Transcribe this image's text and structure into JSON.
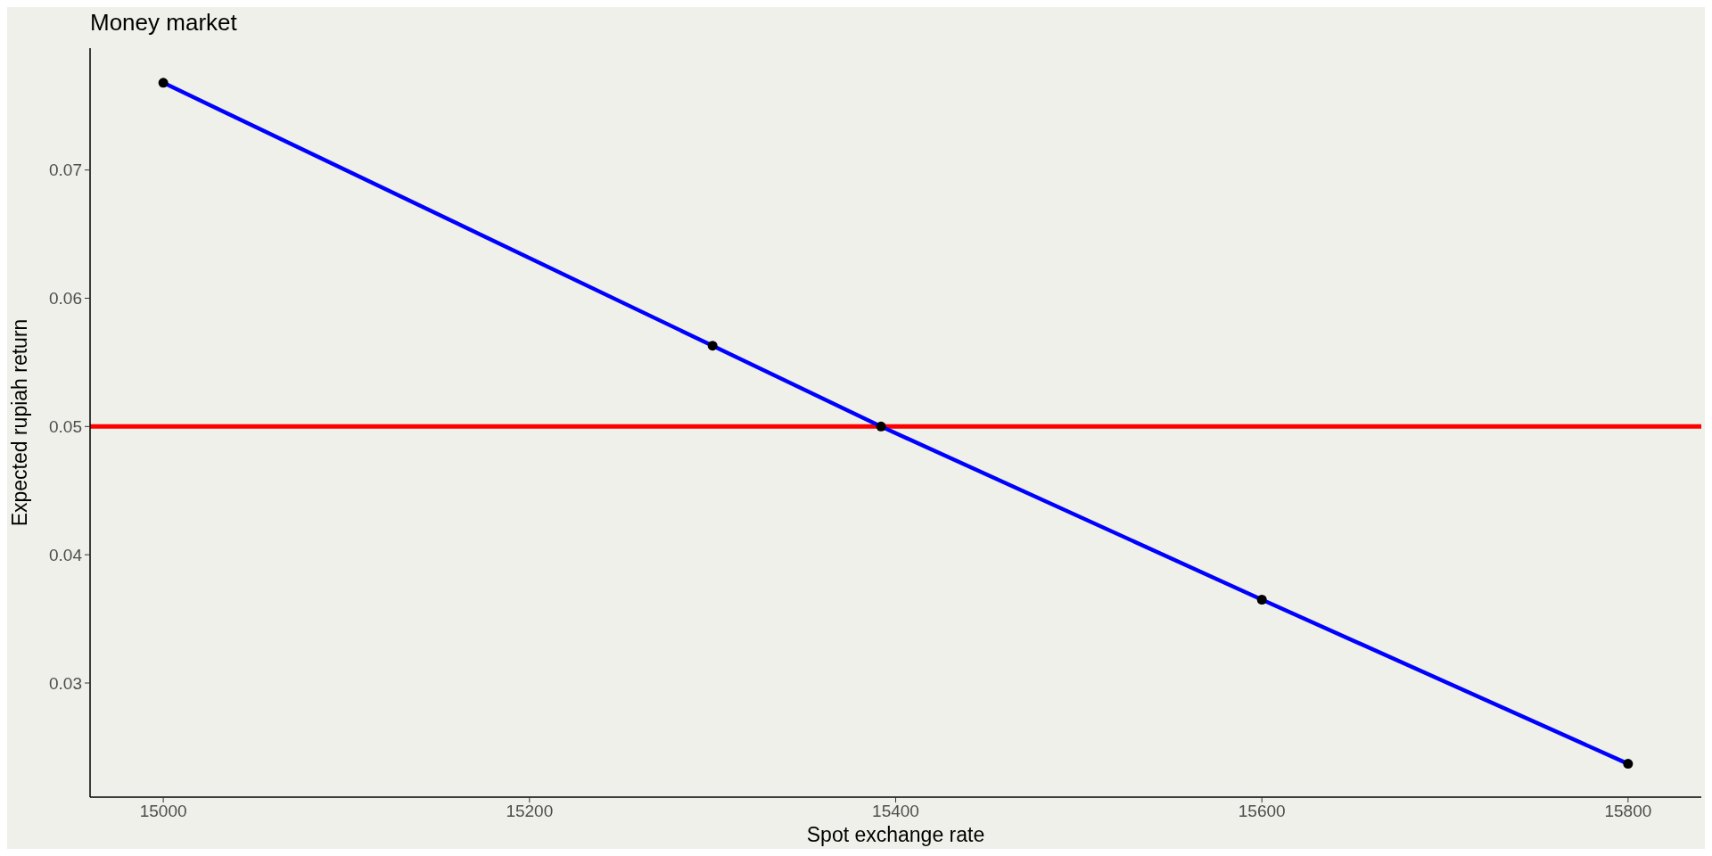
{
  "chart_data": {
    "type": "line",
    "title": "Money market",
    "xlabel": "Spot exchange rate",
    "ylabel": "Expected rupiah return",
    "series": [
      {
        "color": "#0000ff",
        "x": [
          15000,
          15300,
          15392,
          15600,
          15800
        ],
        "values": [
          0.0768,
          0.0563,
          0.05,
          0.0365,
          0.0237
        ]
      },
      {
        "type": "scatter",
        "color": "#000000",
        "x": [
          15000,
          15300,
          15392,
          15600,
          15800
        ],
        "values": [
          0.0768,
          0.0563,
          0.05,
          0.0365,
          0.0237
        ]
      }
    ],
    "xlim": [
      14960,
      15840
    ],
    "xticks": [
      15000,
      15200,
      15400,
      15600,
      15800
    ],
    "ylim": [
      0.0211,
      0.0795
    ],
    "yticks": [
      0.03,
      0.04,
      0.05,
      0.06,
      0.07
    ],
    "ref_lines": [
      {
        "axis": "y",
        "value": 0.05,
        "color": "#ff0000"
      }
    ],
    "grid": false
  }
}
